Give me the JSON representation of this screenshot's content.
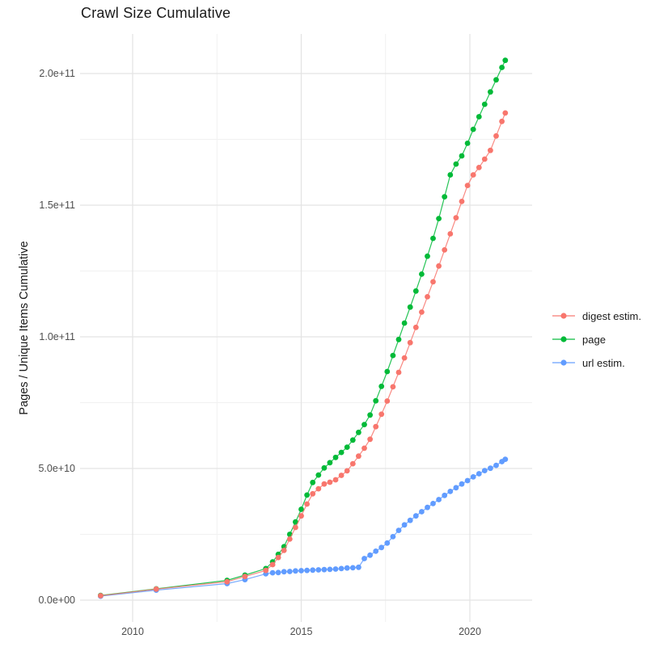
{
  "title": "Crawl Size Cumulative",
  "axes": {
    "y_label": "Pages / Unique Items Cumulative",
    "x_ticks": [
      {
        "label": "2010",
        "year": 2010
      },
      {
        "label": "2015",
        "year": 2015
      },
      {
        "label": "2020",
        "year": 2020
      }
    ],
    "x_minor_years": [
      2012.5,
      2017.5
    ],
    "y_ticks": [
      {
        "label": "0.0e+00",
        "value_billions": 0
      },
      {
        "label": "5.0e+10",
        "value_billions": 50
      },
      {
        "label": "1.0e+11",
        "value_billions": 100
      },
      {
        "label": "1.5e+11",
        "value_billions": 150
      },
      {
        "label": "2.0e+11",
        "value_billions": 200
      }
    ],
    "y_minor_billions": [
      25,
      75,
      125,
      175
    ]
  },
  "legend": {
    "items": [
      {
        "label": "digest estim.",
        "color": "#F8766D"
      },
      {
        "label": "page",
        "color": "#00BA38"
      },
      {
        "label": "url estim.",
        "color": "#619CFF"
      }
    ]
  },
  "colors": {
    "digest": "#F8766D",
    "page": "#00BA38",
    "url": "#619CFF",
    "grid_major": "#e4e4e4",
    "grid_minor": "#f1f1f1",
    "tick_text": "#4d4d4d",
    "title_text": "#1a1a1a"
  },
  "chart_data": {
    "type": "scatter",
    "title": "Crawl Size Cumulative",
    "xlabel": "",
    "ylabel": "Pages / Unique Items Cumulative",
    "x_unit": "year",
    "y_unit": "count (values stored in billions, i.e. 1e9)",
    "xlim": [
      2008.44,
      2021.85
    ],
    "ylim_billions": [
      -8.3,
      215
    ],
    "grid": true,
    "legend_position": "right",
    "marker_radius_px": 3.4,
    "x": [
      2009.05,
      2010.7,
      2012.8,
      2013.33,
      2013.95,
      2014.15,
      2014.32,
      2014.49,
      2014.66,
      2014.83,
      2015.0,
      2015.17,
      2015.34,
      2015.51,
      2015.68,
      2015.85,
      2016.02,
      2016.19,
      2016.36,
      2016.53,
      2016.7,
      2016.87,
      2017.04,
      2017.21,
      2017.38,
      2017.55,
      2017.72,
      2017.89,
      2018.06,
      2018.23,
      2018.4,
      2018.57,
      2018.74,
      2018.91,
      2019.08,
      2019.25,
      2019.42,
      2019.59,
      2019.76,
      2019.93,
      2020.1,
      2020.27,
      2020.44,
      2020.61,
      2020.78,
      2020.95,
      2021.05
    ],
    "series": [
      {
        "name": "digest estim.",
        "color": "#F8766D",
        "values_billions": [
          1.7,
          4.2,
          7.0,
          9.0,
          11.3,
          13.5,
          16.2,
          18.9,
          23.2,
          27.6,
          32.0,
          36.5,
          40.4,
          42.3,
          44.1,
          44.8,
          45.7,
          47.4,
          49.1,
          51.8,
          54.7,
          57.7,
          61.1,
          65.9,
          70.6,
          75.6,
          81.0,
          86.5,
          92.0,
          97.8,
          103.6,
          109.4,
          115.2,
          120.9,
          126.9,
          133.0,
          139.1,
          145.2,
          151.4,
          157.5,
          161.5,
          164.3,
          167.5,
          170.8,
          176.3,
          181.8,
          185.0
        ]
      },
      {
        "name": "page",
        "color": "#00BA38",
        "values_billions": [
          1.8,
          4.3,
          7.5,
          9.5,
          12.0,
          14.5,
          17.4,
          20.3,
          25.0,
          29.7,
          34.5,
          39.9,
          44.7,
          47.5,
          50.2,
          52.2,
          54.2,
          56.1,
          58.1,
          60.8,
          63.7,
          66.7,
          70.3,
          75.7,
          81.2,
          86.8,
          92.9,
          99.0,
          105.2,
          111.3,
          117.4,
          123.8,
          130.6,
          137.4,
          144.9,
          153.2,
          161.5,
          165.6,
          168.7,
          173.5,
          178.8,
          183.6,
          188.3,
          193.0,
          197.6,
          202.3,
          205.0
        ]
      },
      {
        "name": "url estim.",
        "color": "#619CFF",
        "values_billions": [
          1.5,
          3.8,
          6.3,
          7.8,
          10.0,
          10.4,
          10.5,
          10.8,
          10.9,
          11.1,
          11.2,
          11.3,
          11.4,
          11.5,
          11.6,
          11.7,
          11.8,
          12.0,
          12.2,
          12.3,
          12.5,
          15.8,
          17.1,
          18.6,
          20.0,
          21.7,
          24.1,
          26.5,
          28.6,
          30.3,
          32.0,
          33.6,
          35.2,
          36.7,
          38.2,
          39.8,
          41.3,
          42.7,
          44.1,
          45.4,
          46.8,
          48.0,
          49.2,
          50.1,
          51.2,
          52.6,
          53.5
        ]
      }
    ],
    "draw_order": [
      "url estim.",
      "page",
      "digest estim."
    ]
  }
}
